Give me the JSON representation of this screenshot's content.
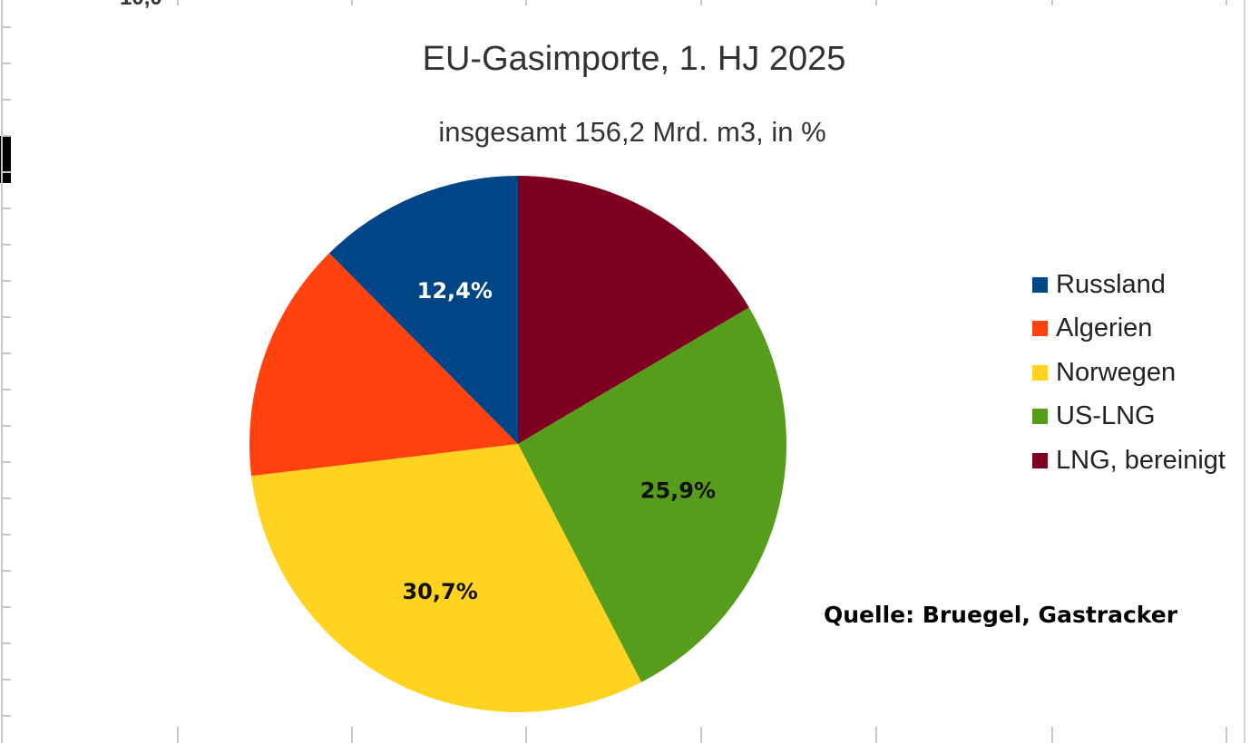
{
  "chart_data": {
    "type": "pie",
    "title": "EU-Gasimporte, 1. HJ 2025",
    "subtitle": "insgesamt 156,2 Mrd. m3, in %",
    "series": [
      {
        "name": "Russland",
        "value": 12.4,
        "label": "12,4%",
        "color": "#004586"
      },
      {
        "name": "Algerien",
        "value": 14.5,
        "label": "",
        "color": "#ff420e"
      },
      {
        "name": "Norwegen",
        "value": 30.7,
        "label": "30,7%",
        "color": "#ffd320"
      },
      {
        "name": "US-LNG",
        "value": 25.9,
        "label": "25,9%",
        "color": "#579d1c"
      },
      {
        "name": "LNG, bereinigt",
        "value": 16.5,
        "label": "",
        "color": "#7e0021"
      }
    ],
    "start_at": "top, clockwise from LNG, bereinigt",
    "legend_position": "right",
    "source": "Quelle: Bruegel, Gastracker"
  },
  "fragments": {
    "top_text": "10,0"
  }
}
